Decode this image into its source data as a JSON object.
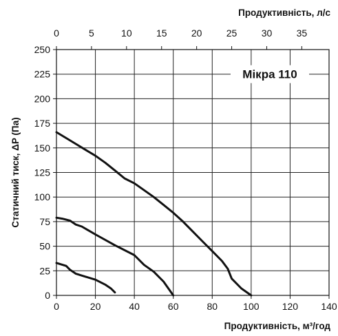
{
  "chart_data": {
    "type": "line",
    "title": "Мікра 110",
    "xlabel": "Продуктивність, м³/год",
    "x2label": "Продуктивність, л/с",
    "ylabel": "Статичний тиск, ΔP (Па)",
    "xlim": [
      0,
      140
    ],
    "x2lim": [
      0,
      38.89
    ],
    "ylim": [
      0,
      250
    ],
    "xticks": [
      0,
      20,
      40,
      60,
      80,
      100,
      120,
      140
    ],
    "x2ticks": [
      0,
      5,
      10,
      15,
      20,
      25,
      30,
      35
    ],
    "yticks": [
      0,
      25,
      50,
      75,
      100,
      125,
      150,
      175,
      200,
      225,
      250
    ],
    "grid": true,
    "series": [
      {
        "x": [
          0,
          5,
          10,
          15,
          20,
          25,
          30,
          35,
          40,
          45,
          50,
          55,
          60,
          65,
          70,
          75,
          80,
          85,
          88,
          90,
          95,
          100
        ],
        "y": [
          166,
          160,
          154,
          148,
          142,
          135,
          127,
          119,
          114,
          107,
          100,
          92,
          84,
          75,
          65,
          55,
          45,
          35,
          27,
          17,
          7,
          0
        ]
      },
      {
        "x": [
          0,
          3,
          7,
          10,
          13,
          20,
          30,
          40,
          45,
          50,
          55,
          60
        ],
        "y": [
          79,
          78,
          76,
          72,
          70,
          62,
          51,
          41,
          31,
          24,
          14,
          0
        ]
      },
      {
        "x": [
          0,
          5,
          7,
          10,
          15,
          20,
          25,
          28,
          30
        ],
        "y": [
          33,
          30,
          26,
          22,
          19,
          16,
          11,
          7,
          3
        ]
      }
    ]
  }
}
